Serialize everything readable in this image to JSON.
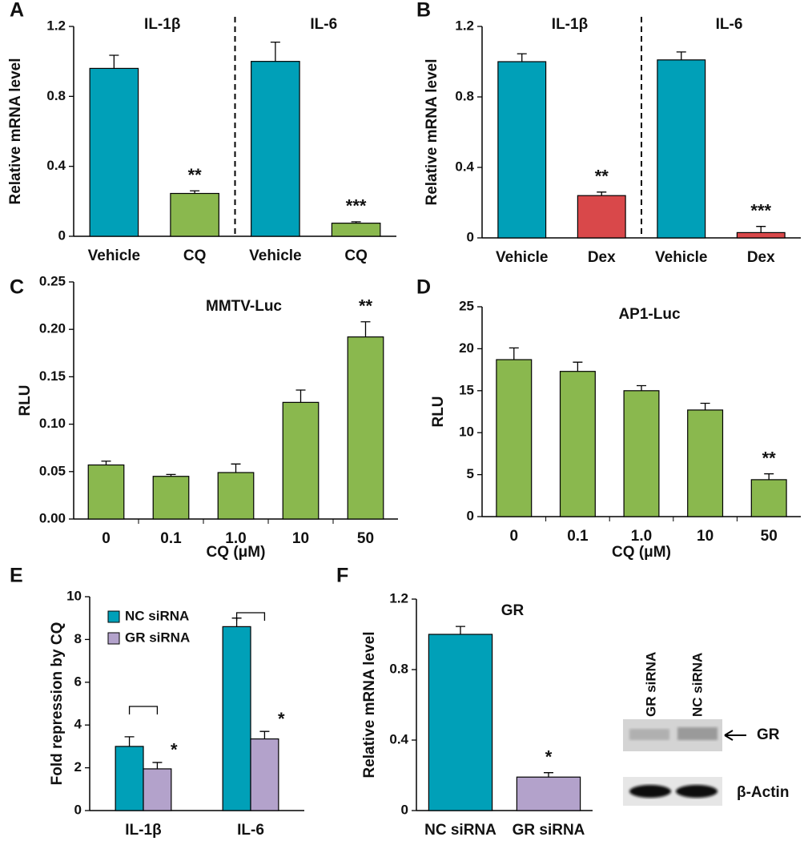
{
  "chart_data": [
    {
      "panel": "A",
      "type": "bar",
      "group_titles": [
        "IL-1β",
        "IL-6"
      ],
      "y_label": "Relative mRNA level",
      "categories": [
        "Vehicle",
        "CQ",
        "Vehicle",
        "CQ"
      ],
      "values": [
        0.96,
        0.245,
        1.0,
        0.075
      ],
      "errors": [
        0.075,
        0.015,
        0.11,
        0.008
      ],
      "colors": [
        "#00a0b8",
        "#8ab84e",
        "#00a0b8",
        "#8ab84e"
      ],
      "annotations": [
        null,
        "**",
        null,
        "***"
      ],
      "ylim": [
        0,
        1.2
      ],
      "yticks": [
        0,
        0.4,
        0.8,
        1.2
      ]
    },
    {
      "panel": "B",
      "type": "bar",
      "group_titles": [
        "IL-1β",
        "IL-6"
      ],
      "y_label": "Relative mRNA level",
      "categories": [
        "Vehicle",
        "Dex",
        "Vehicle",
        "Dex"
      ],
      "values": [
        1.0,
        0.24,
        1.01,
        0.03
      ],
      "errors": [
        0.045,
        0.02,
        0.045,
        0.035
      ],
      "colors": [
        "#00a0b8",
        "#d9484a",
        "#00a0b8",
        "#d9484a"
      ],
      "annotations": [
        null,
        "**",
        null,
        "***"
      ],
      "ylim": [
        0,
        1.2
      ],
      "yticks": [
        0,
        0.4,
        0.8,
        1.2
      ]
    },
    {
      "panel": "C",
      "type": "bar",
      "title": "MMTV-Luc",
      "y_label": "RLU",
      "x_label": "CQ (μM)",
      "categories": [
        "0",
        "0.1",
        "1.0",
        "10",
        "50"
      ],
      "values": [
        0.057,
        0.045,
        0.049,
        0.123,
        0.192
      ],
      "errors": [
        0.004,
        0.002,
        0.009,
        0.013,
        0.016
      ],
      "colors": [
        "#8ab84e",
        "#8ab84e",
        "#8ab84e",
        "#8ab84e",
        "#8ab84e"
      ],
      "annotations": [
        null,
        null,
        null,
        null,
        "**"
      ],
      "ylim": [
        0,
        0.25
      ],
      "yticks": [
        {
          "value": 0,
          "label": "0.00"
        },
        0.05,
        {
          "value": 0.1,
          "label": "0.10"
        },
        0.15,
        {
          "value": 0.2,
          "label": "0.20"
        },
        0.25
      ]
    },
    {
      "panel": "D",
      "type": "bar",
      "title": "AP1-Luc",
      "y_label": "RLU",
      "x_label": "CQ (μM)",
      "categories": [
        "0",
        "0.1",
        "1.0",
        "10",
        "50"
      ],
      "values": [
        18.7,
        17.3,
        15.0,
        12.7,
        4.4
      ],
      "errors": [
        1.4,
        1.1,
        0.6,
        0.8,
        0.7
      ],
      "colors": [
        "#8ab84e",
        "#8ab84e",
        "#8ab84e",
        "#8ab84e",
        "#8ab84e"
      ],
      "annotations": [
        null,
        null,
        null,
        null,
        "**"
      ],
      "ylim": [
        0,
        25
      ],
      "yticks": [
        0,
        5,
        10,
        15,
        20,
        25
      ]
    },
    {
      "panel": "E",
      "type": "grouped_bar",
      "y_label": "Fold repression by CQ",
      "legend": "top-left",
      "categories": [
        "IL-1β",
        "IL-6"
      ],
      "series": [
        {
          "name": "NC siRNA",
          "color": "#00a0b8",
          "values": [
            3.0,
            8.6
          ],
          "errors": [
            0.45,
            0.4
          ],
          "annotations": [
            null,
            null
          ]
        },
        {
          "name": "GR siRNA",
          "color": "#b3a2cb",
          "values": [
            1.95,
            3.35
          ],
          "errors": [
            0.3,
            0.35
          ],
          "annotations": [
            "*",
            "*"
          ]
        }
      ],
      "ylim": [
        0,
        10
      ],
      "yticks": [
        0,
        2,
        4,
        6,
        8,
        10
      ]
    },
    {
      "panel": "F",
      "type": "bar",
      "title": "GR",
      "y_label": "Relative mRNA level",
      "categories": [
        "NC siRNA",
        "GR siRNA"
      ],
      "values": [
        1.0,
        0.19
      ],
      "errors": [
        0.045,
        0.025
      ],
      "colors": [
        "#00a0b8",
        "#b3a2cb"
      ],
      "annotations": [
        null,
        "*"
      ],
      "ylim": [
        0,
        1.2
      ],
      "yticks": [
        0,
        0.4,
        0.8,
        1.2
      ],
      "blot": {
        "lanes": [
          "GR siRNA",
          "NC siRNA"
        ],
        "bands": [
          "GR",
          "β-Actin"
        ]
      }
    }
  ]
}
